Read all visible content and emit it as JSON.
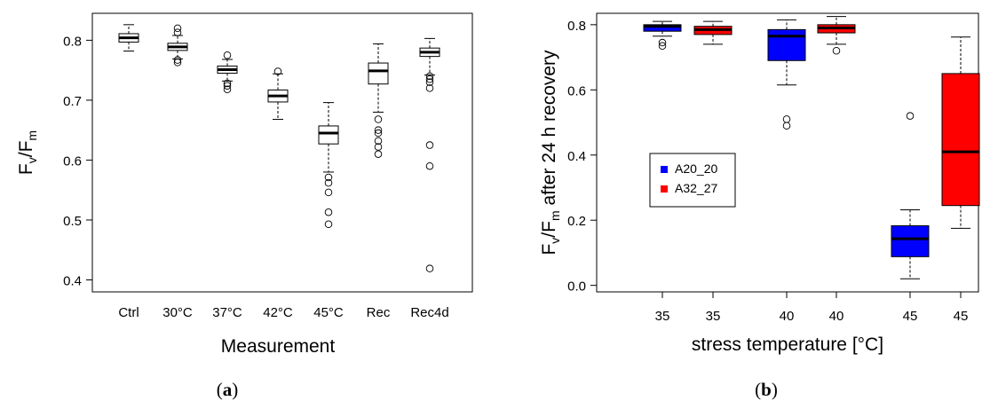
{
  "chart_data": [
    {
      "type": "boxplot",
      "panel_label": "a",
      "xlabel": "Measurement",
      "ylabel_main": "F",
      "ylabel_sub1": "v",
      "ylabel_sub2": "m",
      "ylabel_sep": "/",
      "ylim": [
        0.38,
        0.845
      ],
      "yticks": [
        0.4,
        0.5,
        0.6,
        0.7,
        0.8
      ],
      "ytick_labels": [
        "0.4",
        "0.5",
        "0.6",
        "0.7",
        "0.8"
      ],
      "categories": [
        "Ctrl",
        "30°C",
        "37°C",
        "42°C",
        "45°C",
        "Rec",
        "Rec4d"
      ],
      "box_color": "#ffffff",
      "boxes": [
        {
          "wlo": 0.782,
          "q1": 0.797,
          "med": 0.804,
          "q3": 0.811,
          "whi": 0.826,
          "outliers": []
        },
        {
          "wlo": 0.769,
          "q1": 0.783,
          "med": 0.789,
          "q3": 0.795,
          "whi": 0.808,
          "outliers": [
            0.82,
            0.813,
            0.767,
            0.763
          ]
        },
        {
          "wlo": 0.732,
          "q1": 0.745,
          "med": 0.751,
          "q3": 0.757,
          "whi": 0.768,
          "outliers": [
            0.775,
            0.728,
            0.724,
            0.718
          ]
        },
        {
          "wlo": 0.668,
          "q1": 0.697,
          "med": 0.707,
          "q3": 0.717,
          "whi": 0.744,
          "outliers": [
            0.748
          ]
        },
        {
          "wlo": 0.58,
          "q1": 0.627,
          "med": 0.645,
          "q3": 0.657,
          "whi": 0.696,
          "outliers": [
            0.571,
            0.562,
            0.546,
            0.513,
            0.493
          ]
        },
        {
          "wlo": 0.68,
          "q1": 0.727,
          "med": 0.749,
          "q3": 0.762,
          "whi": 0.794,
          "outliers": [
            0.668,
            0.65,
            0.645,
            0.632,
            0.622,
            0.61
          ]
        },
        {
          "wlo": 0.742,
          "q1": 0.773,
          "med": 0.78,
          "q3": 0.787,
          "whi": 0.803,
          "outliers": [
            0.74,
            0.735,
            0.73,
            0.72,
            0.625,
            0.59,
            0.419
          ]
        }
      ]
    },
    {
      "type": "boxplot",
      "panel_label": "b",
      "xlabel": "stress temperature [°C]",
      "ylabel_main": "F",
      "ylabel_sub1": "v",
      "ylabel_sub2": "m",
      "ylabel_sep": "/",
      "ylabel_tail": " after 24 h recovery",
      "ylim": [
        -0.02,
        0.835
      ],
      "yticks": [
        0.0,
        0.2,
        0.4,
        0.6,
        0.8
      ],
      "ytick_labels": [
        "0.0",
        "0.2",
        "0.4",
        "0.6",
        "0.8"
      ],
      "categories": [
        "35",
        "35",
        "40",
        "40",
        "45",
        "45"
      ],
      "legend": {
        "placement": "middle-left",
        "entries": [
          {
            "name": "A20_20",
            "color": "#0000ff"
          },
          {
            "name": "A32_27",
            "color": "#ff0000"
          }
        ]
      },
      "boxes": [
        {
          "series": "A20_20",
          "color": "#0000ff",
          "wlo": 0.765,
          "q1": 0.78,
          "med": 0.795,
          "q3": 0.8,
          "whi": 0.81,
          "outliers": [
            0.745,
            0.735
          ]
        },
        {
          "series": "A32_27",
          "color": "#ff0000",
          "wlo": 0.74,
          "q1": 0.77,
          "med": 0.785,
          "q3": 0.795,
          "whi": 0.81,
          "outliers": []
        },
        {
          "series": "A20_20",
          "color": "#0000ff",
          "wlo": 0.615,
          "q1": 0.69,
          "med": 0.765,
          "q3": 0.785,
          "whi": 0.815,
          "outliers": [
            0.51,
            0.49
          ]
        },
        {
          "series": "A32_27",
          "color": "#ff0000",
          "wlo": 0.74,
          "q1": 0.775,
          "med": 0.79,
          "q3": 0.8,
          "whi": 0.825,
          "outliers": [
            0.72
          ]
        },
        {
          "series": "A20_20",
          "color": "#0000ff",
          "wlo": 0.02,
          "q1": 0.088,
          "med": 0.143,
          "q3": 0.183,
          "whi": 0.232,
          "outliers": [
            0.52
          ]
        },
        {
          "series": "A32_27",
          "color": "#ff0000",
          "wlo": 0.175,
          "q1": 0.245,
          "med": 0.41,
          "q3": 0.65,
          "whi": 0.762,
          "outliers": []
        }
      ]
    }
  ]
}
